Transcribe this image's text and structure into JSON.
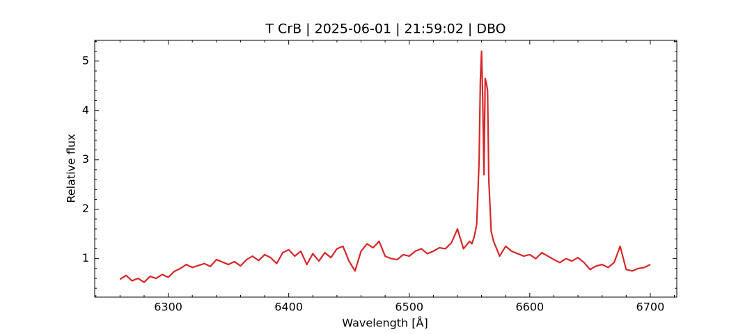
{
  "chart_data": {
    "type": "line",
    "title": "T CrB | 2025-06-01 | 21:59:02 | DBO",
    "x_label": "Wavelength [Å]",
    "y_label": "Relative flux",
    "xlim": [
      6239,
      6722
    ],
    "ylim": [
      0.22,
      5.42
    ],
    "xticks": [
      6300,
      6400,
      6500,
      6600,
      6700
    ],
    "yticks": [
      1,
      2,
      3,
      4,
      5
    ],
    "xminorticks": [
      6240,
      6260,
      6280,
      6320,
      6340,
      6360,
      6380,
      6420,
      6440,
      6460,
      6480,
      6520,
      6540,
      6560,
      6580,
      6620,
      6640,
      6660,
      6680,
      6720
    ],
    "yminorticks": [
      0.4,
      0.6,
      0.8,
      1.2,
      1.4,
      1.6,
      1.8,
      2.2,
      2.4,
      2.6,
      2.8,
      3.2,
      3.4,
      3.6,
      3.8,
      4.2,
      4.4,
      4.6,
      4.8,
      5.2,
      5.4
    ],
    "grid": false,
    "x": [
      6260,
      6265,
      6270,
      6275,
      6280,
      6285,
      6290,
      6295,
      6300,
      6305,
      6310,
      6315,
      6320,
      6325,
      6330,
      6335,
      6340,
      6345,
      6350,
      6355,
      6360,
      6365,
      6370,
      6375,
      6380,
      6385,
      6390,
      6395,
      6400,
      6405,
      6410,
      6415,
      6420,
      6425,
      6430,
      6435,
      6440,
      6445,
      6450,
      6455,
      6460,
      6465,
      6470,
      6475,
      6480,
      6485,
      6490,
      6495,
      6500,
      6505,
      6510,
      6515,
      6520,
      6525,
      6530,
      6535,
      6540,
      6545,
      6550,
      6552,
      6554,
      6556,
      6558,
      6559,
      6560,
      6561,
      6562,
      6563,
      6564,
      6565,
      6566,
      6568,
      6570,
      6575,
      6580,
      6585,
      6590,
      6595,
      6600,
      6605,
      6610,
      6615,
      6620,
      6625,
      6630,
      6635,
      6640,
      6645,
      6650,
      6655,
      6660,
      6665,
      6670,
      6675,
      6680,
      6685,
      6690,
      6695,
      6700
    ],
    "series": [
      {
        "name": "T CrB",
        "color": "#d62728",
        "values": [
          0.58,
          0.66,
          0.55,
          0.6,
          0.52,
          0.64,
          0.6,
          0.68,
          0.62,
          0.74,
          0.8,
          0.88,
          0.82,
          0.86,
          0.9,
          0.84,
          0.98,
          0.93,
          0.88,
          0.94,
          0.85,
          0.98,
          1.05,
          0.96,
          1.08,
          1.02,
          0.9,
          1.12,
          1.18,
          1.05,
          1.15,
          0.88,
          1.1,
          0.95,
          1.12,
          1.02,
          1.2,
          1.25,
          0.95,
          0.75,
          1.15,
          1.3,
          1.22,
          1.35,
          1.05,
          1.0,
          0.98,
          1.08,
          1.05,
          1.15,
          1.2,
          1.1,
          1.15,
          1.22,
          1.2,
          1.32,
          1.6,
          1.2,
          1.35,
          1.3,
          1.45,
          1.7,
          3.0,
          4.6,
          5.2,
          4.2,
          2.7,
          4.65,
          4.55,
          4.4,
          2.6,
          1.55,
          1.35,
          1.05,
          1.25,
          1.15,
          1.1,
          1.05,
          1.08,
          1.0,
          1.12,
          1.05,
          0.98,
          0.92,
          1.0,
          0.95,
          1.02,
          0.92,
          0.78,
          0.85,
          0.88,
          0.82,
          0.92,
          1.25,
          0.78,
          0.75,
          0.8,
          0.82,
          0.88
        ]
      }
    ]
  }
}
